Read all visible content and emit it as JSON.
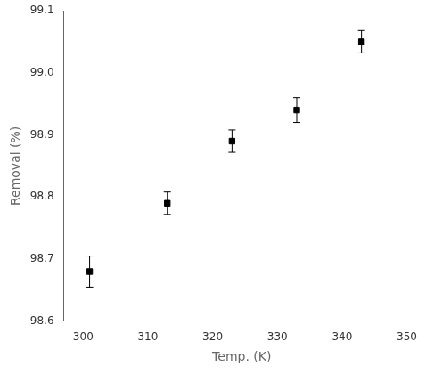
{
  "chart_data": {
    "type": "scatter",
    "x": [
      301,
      313,
      323,
      333,
      343
    ],
    "values": [
      98.68,
      98.79,
      98.89,
      98.94,
      99.05
    ],
    "yerr": [
      0.025,
      0.018,
      0.018,
      0.02,
      0.018
    ],
    "xlabel": "Temp. (K)",
    "ylabel": "Removal (%)",
    "xlim": [
      297,
      352
    ],
    "ylim": [
      98.6,
      99.1
    ],
    "xticks": [
      300,
      310,
      320,
      330,
      340,
      350
    ],
    "yticks": [
      98.6,
      98.7,
      98.8,
      98.9,
      {
        "value": 99.0,
        "label": "99.0"
      },
      99.1
    ],
    "marker": "square",
    "color": "#000000",
    "grid": false
  }
}
